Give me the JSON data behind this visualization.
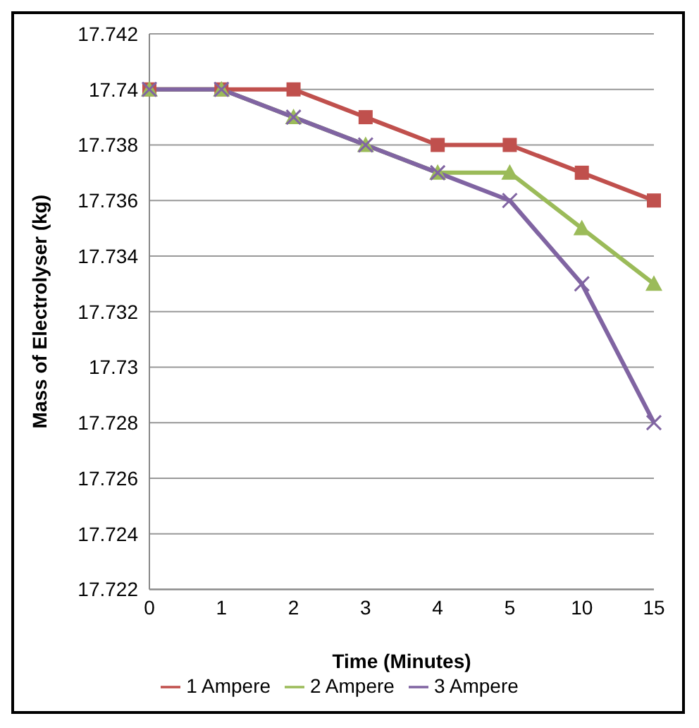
{
  "chart_data": {
    "type": "line",
    "xlabel": "Time (Minutes)",
    "ylabel": "Mass of Electrolyser (kg)",
    "categories": [
      "0",
      "1",
      "2",
      "3",
      "4",
      "5",
      "10",
      "15"
    ],
    "series": [
      {
        "name": "1 Ampere",
        "color": "#c0504d",
        "marker": "square",
        "values": [
          17.74,
          17.74,
          17.74,
          17.739,
          17.738,
          17.738,
          17.737,
          17.736
        ]
      },
      {
        "name": "2 Ampere",
        "color": "#9bbb59",
        "marker": "triangle",
        "values": [
          17.74,
          17.74,
          17.739,
          17.738,
          17.737,
          17.737,
          17.735,
          17.733
        ]
      },
      {
        "name": "3 Ampere",
        "color": "#8064a2",
        "marker": "cross",
        "values": [
          17.74,
          17.74,
          17.739,
          17.738,
          17.737,
          17.736,
          17.733,
          17.728
        ]
      }
    ],
    "ylim": [
      17.722,
      17.742
    ],
    "yticks": [
      17.722,
      17.724,
      17.726,
      17.728,
      17.73,
      17.732,
      17.734,
      17.736,
      17.738,
      17.74,
      17.742
    ],
    "grid": "y",
    "legend": "bottom"
  }
}
